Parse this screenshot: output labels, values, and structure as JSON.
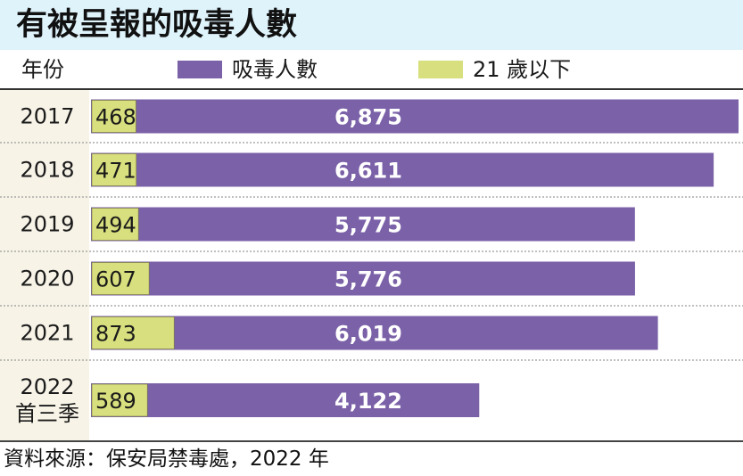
{
  "title": "有被呈報的吸毒人數",
  "header": {
    "year_label": "年份",
    "legend": [
      {
        "label": "吸毒人數",
        "color": "#7b62a8"
      },
      {
        "label": "21 歲以下",
        "color": "#d8df7e"
      }
    ]
  },
  "chart_data": {
    "type": "bar",
    "orientation": "horizontal",
    "stacked": false,
    "categories": [
      [
        "2017"
      ],
      [
        "2018"
      ],
      [
        "2019"
      ],
      [
        "2020"
      ],
      [
        "2021"
      ],
      [
        "2022",
        "首三季"
      ]
    ],
    "series": [
      {
        "name": "吸毒人數",
        "color": "#7b62a8",
        "values": [
          6875,
          6611,
          5775,
          5776,
          6019,
          4122
        ],
        "labels": [
          "6,875",
          "6,611",
          "5,775",
          "5,776",
          "6,019",
          "4,122"
        ]
      },
      {
        "name": "21 歲以下",
        "color": "#d8df7e",
        "values": [
          468,
          471,
          494,
          607,
          873,
          589
        ],
        "labels": [
          "468",
          "471",
          "494",
          "607",
          "873",
          "589"
        ]
      }
    ],
    "xlim": [
      0,
      6875
    ],
    "grid": false,
    "legend": "top"
  },
  "source": "資料來源：保安局禁毒處，2022 年"
}
